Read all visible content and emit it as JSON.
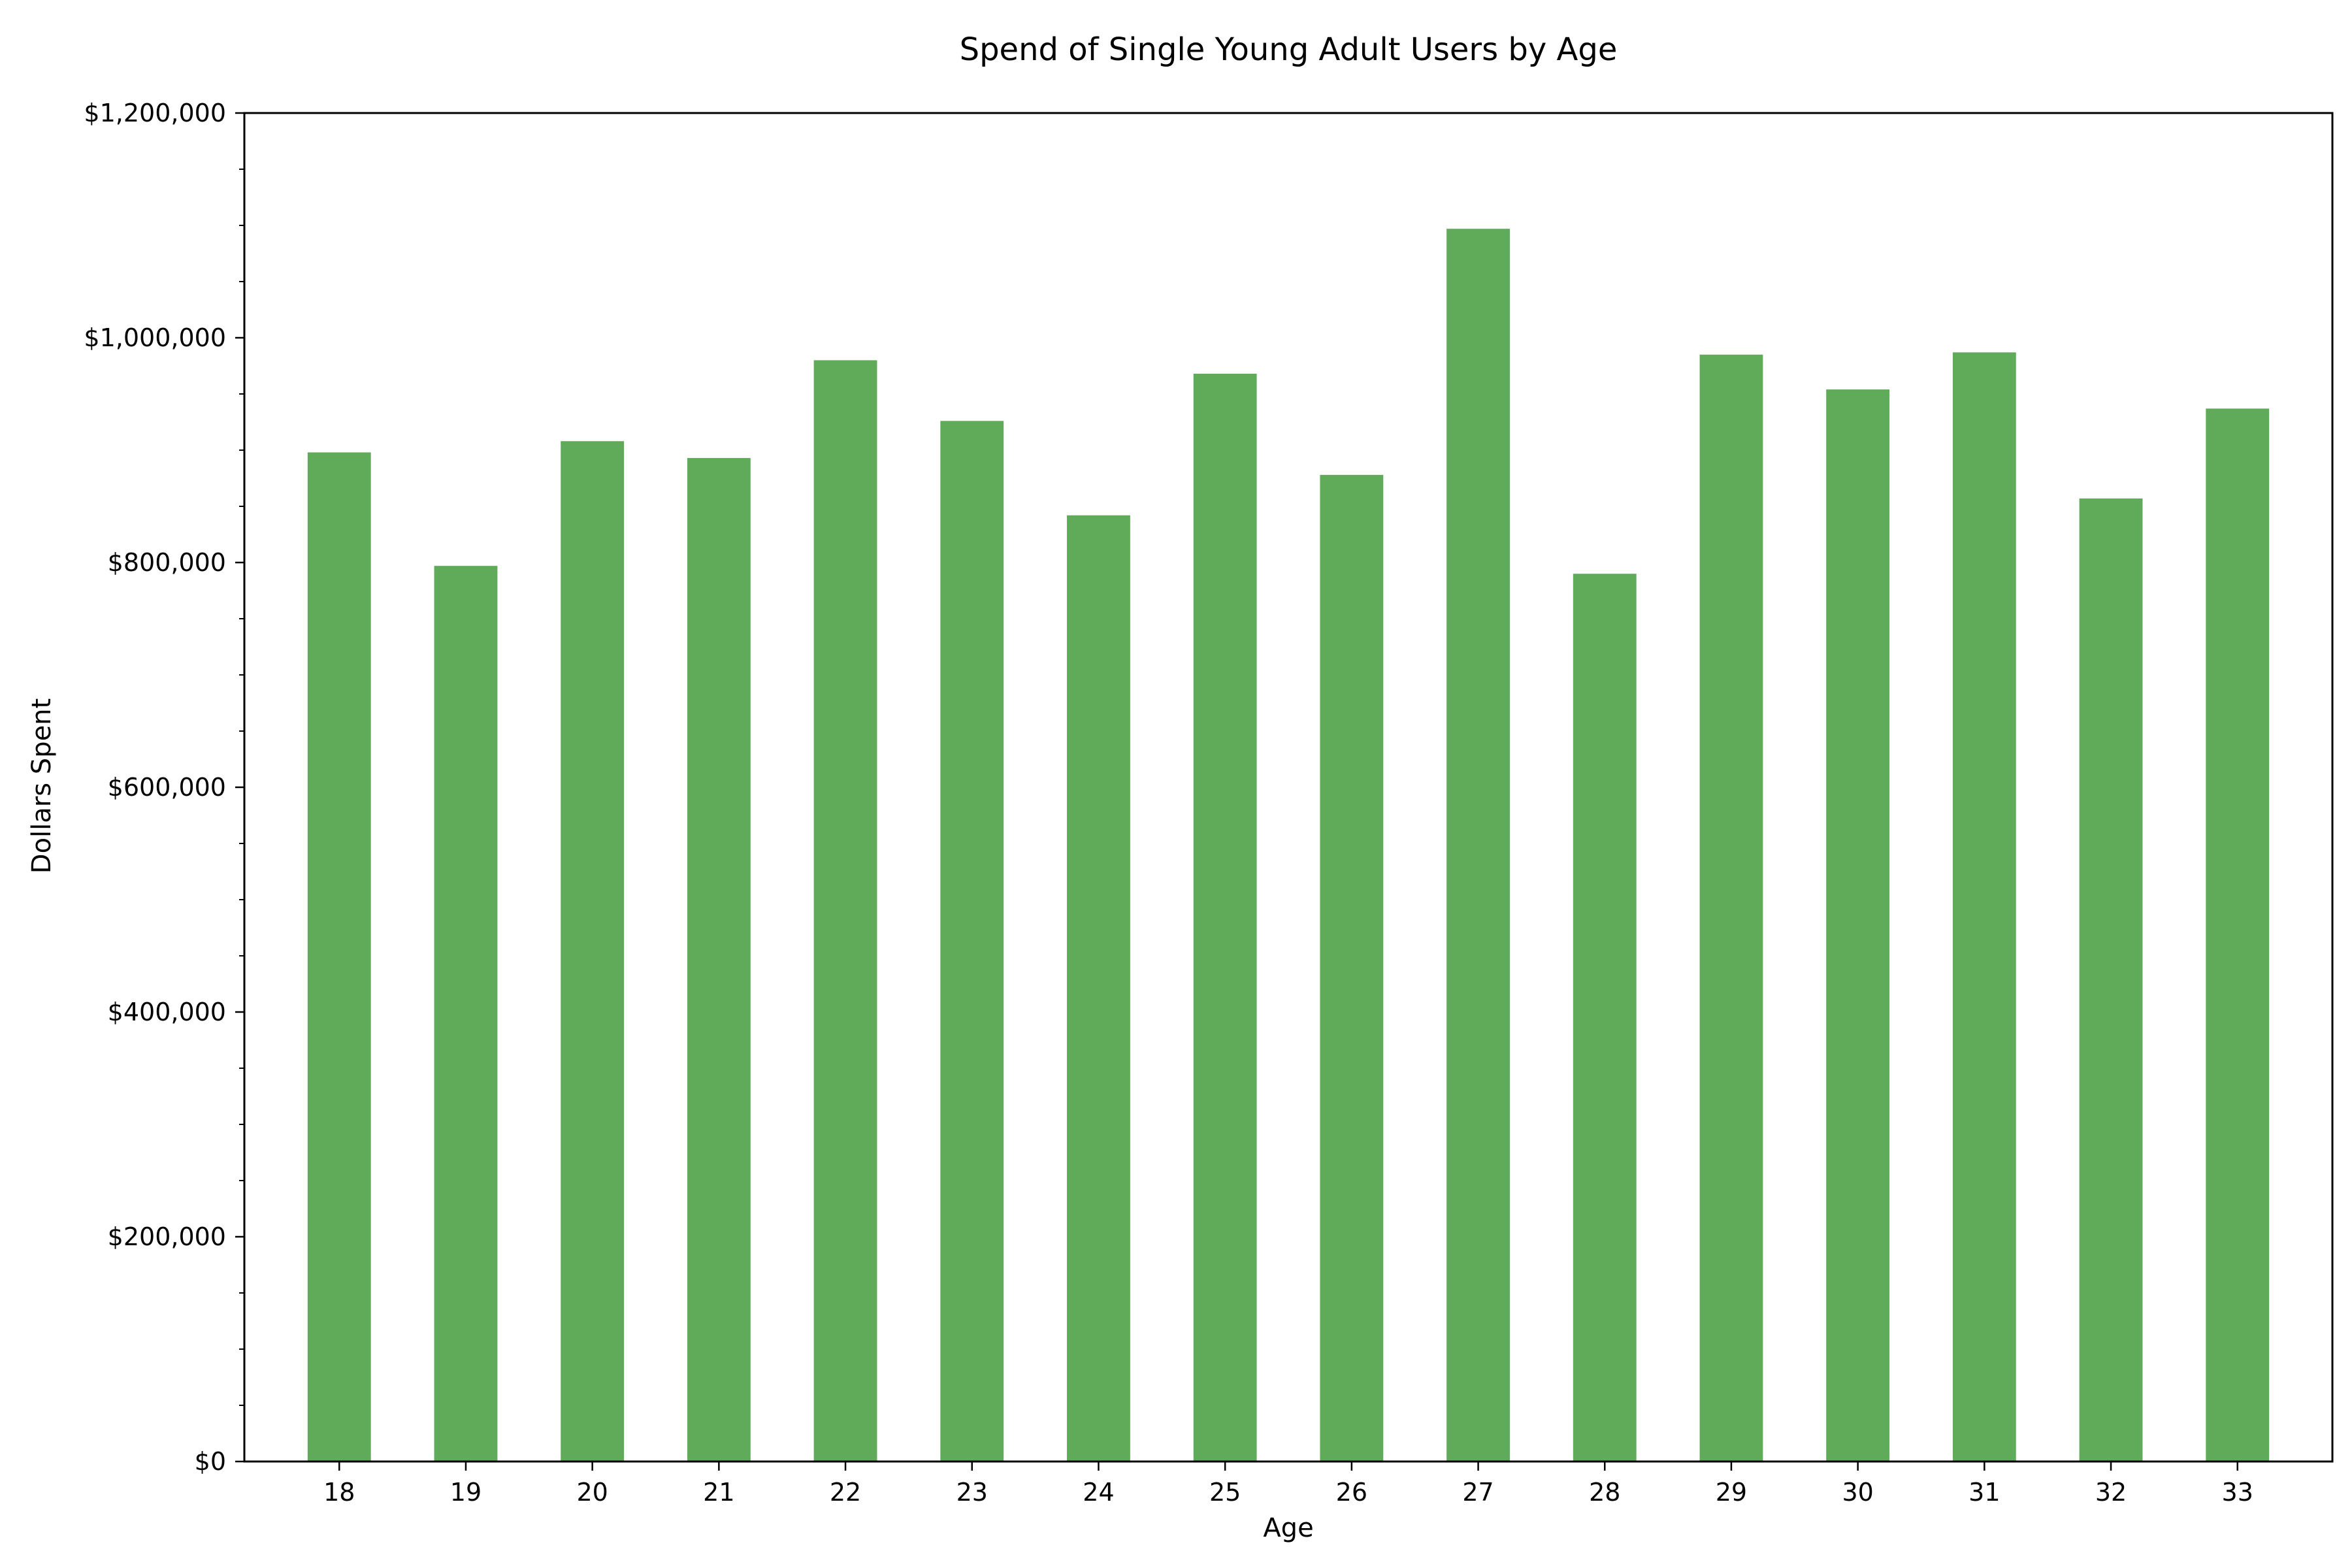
{
  "chart_data": {
    "type": "bar",
    "title": "Spend of Single Young Adult Users by Age",
    "xlabel": "Age",
    "ylabel": "Dollars Spent",
    "categories": [
      "18",
      "19",
      "20",
      "21",
      "22",
      "23",
      "24",
      "25",
      "26",
      "27",
      "28",
      "29",
      "30",
      "31",
      "32",
      "33"
    ],
    "values": [
      898000,
      797000,
      908000,
      893000,
      980000,
      926000,
      842000,
      968000,
      878000,
      1097000,
      790000,
      985000,
      954000,
      987000,
      857000,
      937000
    ],
    "ylim": [
      0,
      1200000
    ],
    "yticks": [
      0,
      200000,
      400000,
      600000,
      800000,
      1000000,
      1200000
    ],
    "ytick_labels": [
      "$0",
      "$200,000",
      "$400,000",
      "$600,000",
      "$800,000",
      "$1,000,000",
      "$1,200,000"
    ],
    "y_minor_step": 50000,
    "bar_color": "#60ab59",
    "grid": false,
    "legend": "none"
  }
}
